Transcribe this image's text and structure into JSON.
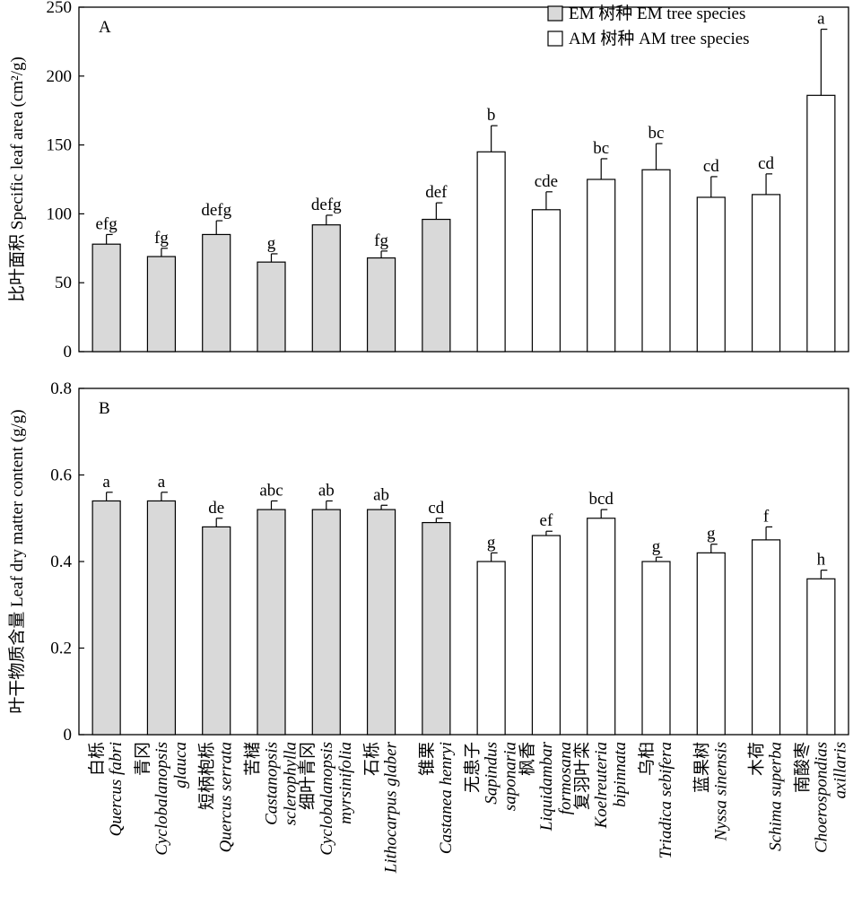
{
  "colors": {
    "em_fill": "#d9d9d9",
    "am_fill": "#ffffff",
    "stroke": "#000000"
  },
  "legend": {
    "em": "EM 树种 EM tree species",
    "am": "AM 树种 AM tree species"
  },
  "species": [
    {
      "cn": "白栎",
      "la": [
        "Quercus fabri"
      ],
      "group": "EM"
    },
    {
      "cn": "青冈",
      "la": [
        "Cyclobalanopsis",
        "glauca"
      ],
      "group": "EM"
    },
    {
      "cn": "短柄枹栎",
      "la": [
        "Quercus serrata"
      ],
      "group": "EM"
    },
    {
      "cn": "苦槠",
      "la": [
        "Castanopsis",
        "sclerophylla"
      ],
      "group": "EM"
    },
    {
      "cn": "细叶青冈",
      "la": [
        "Cyclobalanopsis",
        "myrsinifolia"
      ],
      "group": "EM"
    },
    {
      "cn": "石栎",
      "la": [
        "Lithocarpus glaber"
      ],
      "group": "EM"
    },
    {
      "cn": "锥栗",
      "la": [
        "Castanea henryi"
      ],
      "group": "EM"
    },
    {
      "cn": "无患子",
      "la": [
        "Sapindus",
        "saponaria"
      ],
      "group": "AM"
    },
    {
      "cn": "枫香",
      "la": [
        "Liquidambar",
        "formosana"
      ],
      "group": "AM"
    },
    {
      "cn": "复羽叶栾",
      "la": [
        "Koelreuteria",
        "bipinnata"
      ],
      "group": "AM"
    },
    {
      "cn": "乌桕",
      "la": [
        "Triadica sebifera"
      ],
      "group": "AM"
    },
    {
      "cn": "蓝果树",
      "la": [
        "Nyssa sinensis"
      ],
      "group": "AM"
    },
    {
      "cn": "木荷",
      "la": [
        "Schima superba"
      ],
      "group": "AM"
    },
    {
      "cn": "南酸枣",
      "la": [
        "Choerospondias",
        "axillaris"
      ],
      "group": "AM"
    }
  ],
  "chart_data": [
    {
      "type": "bar",
      "panel": "A",
      "ylabel": "比叶面积 Specific leaf area (cm²/g)",
      "ylim": [
        0,
        250
      ],
      "yticks": [
        "0",
        "50",
        "100",
        "150",
        "200",
        "250"
      ],
      "values": [
        78,
        69,
        85,
        65,
        92,
        68,
        96,
        145,
        103,
        125,
        132,
        112,
        114,
        186
      ],
      "errors": [
        7,
        6,
        10,
        6,
        7,
        5,
        12,
        19,
        13,
        15,
        19,
        15,
        15,
        48
      ],
      "letters": [
        "efg",
        "fg",
        "defg",
        "g",
        "defg",
        "fg",
        "def",
        "b",
        "cde",
        "bc",
        "bc",
        "cd",
        "cd",
        "a"
      ]
    },
    {
      "type": "bar",
      "panel": "B",
      "ylabel": "叶干物质含量 Leaf dry matter content (g/g)",
      "ylim": [
        0,
        0.8
      ],
      "yticks": [
        "0",
        "0.2",
        "0.4",
        "0.6",
        "0.8"
      ],
      "values": [
        0.54,
        0.54,
        0.48,
        0.52,
        0.52,
        0.52,
        0.49,
        0.4,
        0.46,
        0.5,
        0.4,
        0.42,
        0.45,
        0.36
      ],
      "errors": [
        0.02,
        0.02,
        0.02,
        0.02,
        0.02,
        0.01,
        0.01,
        0.02,
        0.01,
        0.02,
        0.01,
        0.02,
        0.03,
        0.02
      ],
      "letters": [
        "a",
        "a",
        "de",
        "abc",
        "ab",
        "ab",
        "cd",
        "g",
        "ef",
        "bcd",
        "g",
        "g",
        "f",
        "h"
      ]
    }
  ]
}
